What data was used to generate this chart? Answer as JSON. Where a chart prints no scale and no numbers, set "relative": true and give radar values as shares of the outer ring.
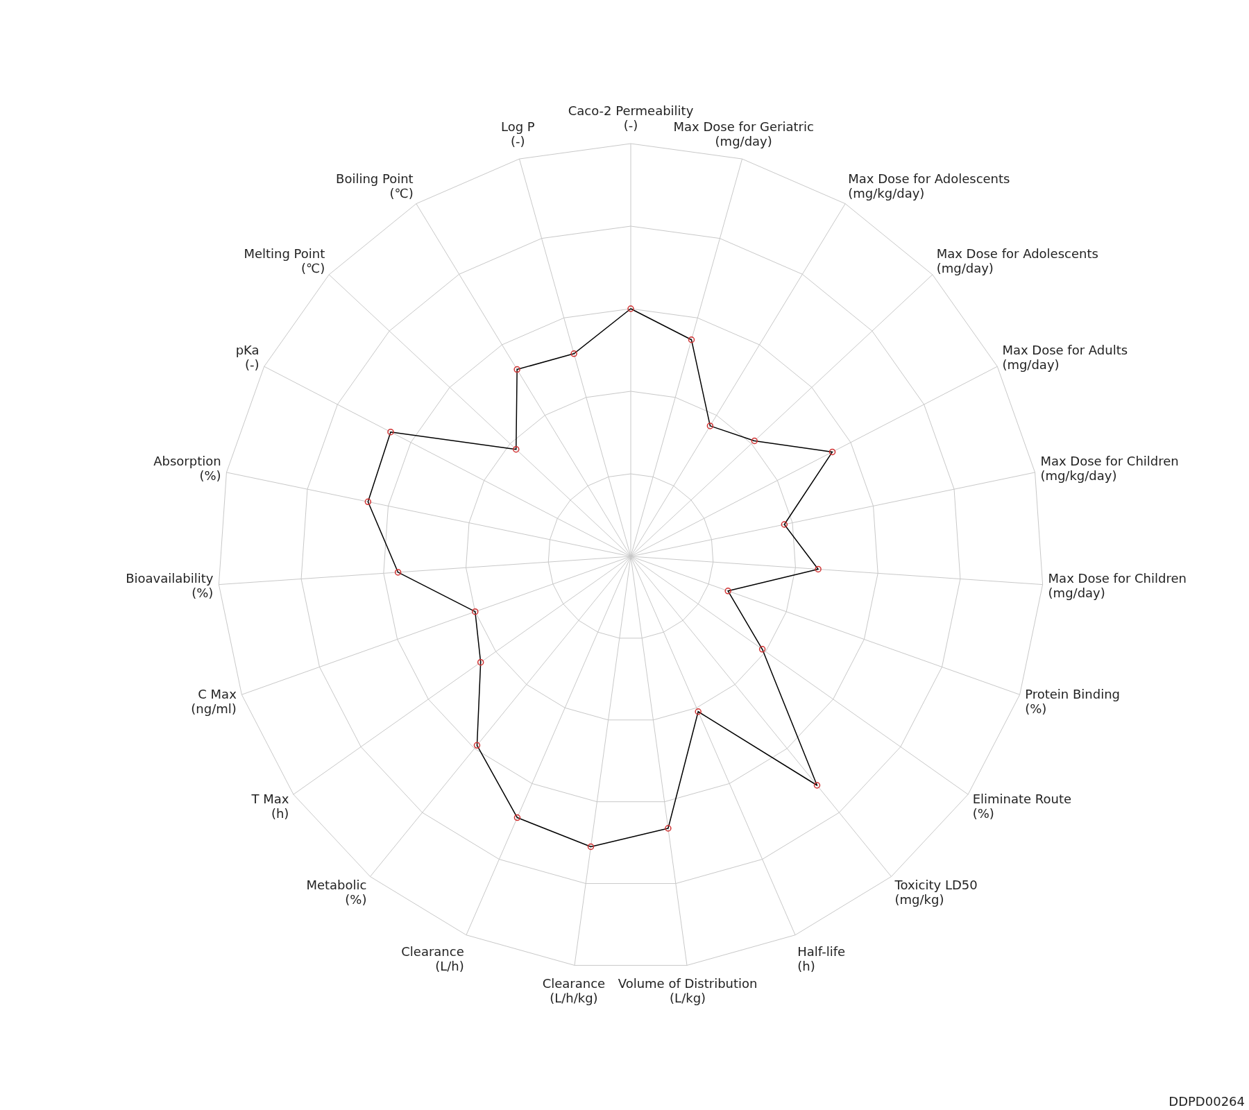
{
  "chart_data": {
    "type": "radar",
    "relative": true,
    "grid": true,
    "marker": "circle",
    "categories": [
      "Caco-2 Permeability\n(-)",
      "Max Dose for Geriatric\n(mg/day)",
      "Max Dose for Adolescents\n(mg/kg/day)",
      "Max Dose for Adolescents\n(mg/day)",
      "Max Dose for Adults\n(mg/day)",
      "Max Dose for Children\n(mg/kg/day)",
      "Max Dose for Children\n(mg/day)",
      "Protein Binding\n(%)",
      "Eliminate Route\n(%)",
      "Toxicity LD50\n(mg/kg)",
      "Half-life\n(h)",
      "Volume of Distribution\n(L/kg)",
      "Clearance\n(L/h/kg)",
      "Clearance\n(L/h)",
      "Metabolic\n(%)",
      "T Max\n(h)",
      "C Max\n(ng/ml)",
      "Bioavailability\n(%)",
      "Absorption\n(%)",
      "pKa\n(-)",
      "Melting Point\n(℃)",
      "Boiling Point\n(℃)",
      "Log P\n(-)"
    ],
    "series": [
      {
        "color": "#000000",
        "values": [
          0.6,
          0.545,
          0.37,
          0.41,
          0.55,
          0.38,
          0.455,
          0.25,
          0.39,
          0.715,
          0.41,
          0.665,
          0.71,
          0.69,
          0.59,
          0.445,
          0.4,
          0.565,
          0.65,
          0.655,
          0.38,
          0.53,
          0.51
        ]
      }
    ],
    "annotations": [
      "DDPD00264"
    ]
  }
}
